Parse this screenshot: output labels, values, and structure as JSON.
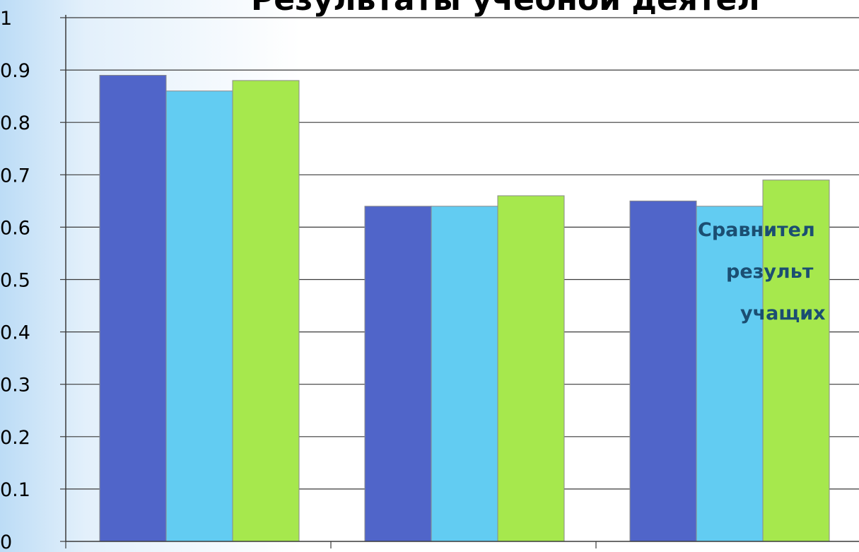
{
  "chart_data": {
    "type": "bar",
    "title": "Результаты учебной деятел",
    "categories": [
      "",
      "",
      ""
    ],
    "series": [
      {
        "values": [
          0.89,
          0.64,
          0.65
        ],
        "color": "#5065c9"
      },
      {
        "values": [
          0.86,
          0.64,
          0.64
        ],
        "color": "#62ccf2"
      },
      {
        "values": [
          0.88,
          0.66,
          0.69
        ],
        "color": "#a6e84d"
      }
    ],
    "ylim": [
      0,
      1
    ],
    "yticks": [
      "0",
      "0.1",
      "0.2",
      "0.3",
      "0.4",
      "0.5",
      "0.6",
      "0.7",
      "0.8",
      "0.9",
      "1"
    ],
    "grid": true,
    "annotation": [
      "Сравнител",
      "результ",
      "учащих"
    ]
  }
}
